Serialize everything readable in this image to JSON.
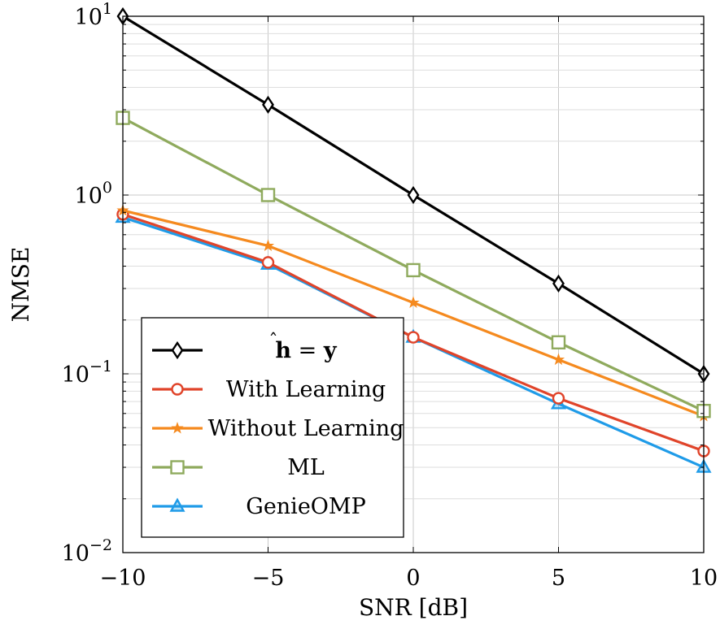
{
  "chart_data": {
    "type": "line",
    "xlabel": "SNR [dB]",
    "ylabel": "NMSE",
    "xlim": [
      -10,
      10
    ],
    "ylim": [
      0.01,
      10
    ],
    "yscale": "log",
    "grid": true,
    "legend_position": "bottom-left",
    "x": [
      -10,
      -5,
      0,
      5,
      10
    ],
    "x_tick_labels": [
      "−10",
      "−5",
      "0",
      "5",
      "10"
    ],
    "y_ticks": [
      {
        "value": 0.01,
        "base": "10",
        "exp": "−2"
      },
      {
        "value": 0.1,
        "base": "10",
        "exp": "−1"
      },
      {
        "value": 1,
        "base": "10",
        "exp": "0"
      },
      {
        "value": 10,
        "base": "10",
        "exp": "1"
      }
    ],
    "series": [
      {
        "name": "ĥ = y",
        "legend_main": "h",
        "legend_eq": " = ",
        "legend_rhs": "y",
        "color": "#000000",
        "marker": "diamond",
        "values": [
          10,
          3.2,
          1.0,
          0.32,
          0.1
        ]
      },
      {
        "name": "With Learning",
        "color": "#e0442a",
        "marker": "circle",
        "values": [
          0.78,
          0.42,
          0.16,
          0.073,
          0.037
        ]
      },
      {
        "name": "Without Learning",
        "color": "#f58a1f",
        "marker": "star",
        "values": [
          0.82,
          0.52,
          0.25,
          0.12,
          0.058
        ]
      },
      {
        "name": "ML",
        "color": "#8faa5d",
        "marker": "square",
        "values": [
          2.7,
          1.0,
          0.38,
          0.15,
          0.062
        ]
      },
      {
        "name": "GenieOMP",
        "color": "#1f9be8",
        "marker": "triangle",
        "values": [
          0.75,
          0.41,
          0.16,
          0.068,
          0.03
        ]
      }
    ]
  }
}
